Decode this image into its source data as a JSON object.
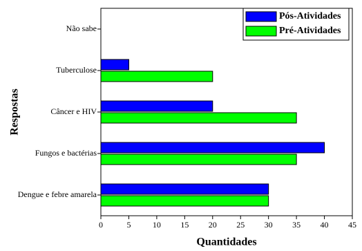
{
  "chart_data": {
    "type": "barh",
    "categories": [
      "Não sabe",
      "Tuberculose",
      "Câncer e HIV",
      "Fungos e bactérias",
      "Dengue e febre amarela"
    ],
    "series": [
      {
        "name": "Pós-Atividades",
        "color": "#0000ff",
        "values": [
          0,
          5,
          20,
          40,
          30
        ]
      },
      {
        "name": "Pré-Atividades",
        "color": "#00ff00",
        "values": [
          0,
          20,
          35,
          35,
          30
        ]
      }
    ],
    "x_label": "Quantidades",
    "y_label": "Respostas",
    "xlim": [
      0,
      45
    ],
    "xticks": [
      0,
      5,
      10,
      15,
      20,
      25,
      30,
      35,
      40,
      45
    ],
    "legend": "upper right"
  }
}
